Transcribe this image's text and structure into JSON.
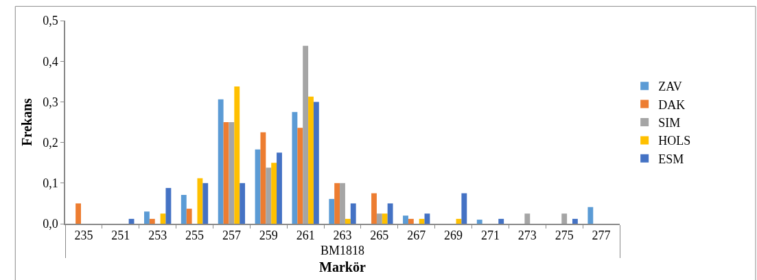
{
  "chart_data": {
    "type": "bar",
    "categories": [
      "235",
      "251",
      "253",
      "255",
      "257",
      "259",
      "261",
      "263",
      "265",
      "267",
      "269",
      "271",
      "273",
      "275",
      "277"
    ],
    "series": [
      {
        "name": "ZAV",
        "color": "#5b9bd5",
        "values": [
          0,
          0,
          0.03,
          0.071,
          0.306,
          0.183,
          0.275,
          0.061,
          0,
          0.02,
          0,
          0.01,
          0,
          0,
          0.041
        ]
      },
      {
        "name": "DAK",
        "color": "#ed7d31",
        "values": [
          0.05,
          0,
          0.012,
          0.037,
          0.25,
          0.225,
          0.236,
          0.1,
          0.075,
          0.012,
          0,
          0,
          0,
          0,
          0
        ]
      },
      {
        "name": "SIM",
        "color": "#a5a5a5",
        "values": [
          0,
          0,
          0,
          0,
          0.25,
          0.138,
          0.438,
          0.1,
          0.025,
          0,
          0,
          0,
          0.025,
          0.025,
          0
        ]
      },
      {
        "name": "HOLS",
        "color": "#ffc000",
        "values": [
          0,
          0,
          0.025,
          0.112,
          0.338,
          0.15,
          0.313,
          0.012,
          0.025,
          0.012,
          0.012,
          0,
          0,
          0,
          0
        ]
      },
      {
        "name": "ESM",
        "color": "#4472c4",
        "values": [
          0,
          0.012,
          0.088,
          0.1,
          0.1,
          0.175,
          0.3,
          0.05,
          0.05,
          0.025,
          0.075,
          0.012,
          0,
          0.012,
          0
        ]
      }
    ],
    "xlabel": "Markör",
    "ylabel": "Frekans",
    "annotations": [
      "BM1818"
    ],
    "ylim": [
      0,
      0.5
    ],
    "yticks": [
      {
        "value": 0,
        "label": "0,0"
      },
      {
        "value": 0.1,
        "label": "0,1"
      },
      {
        "value": 0.2,
        "label": "0,2"
      },
      {
        "value": 0.3,
        "label": "0,3"
      },
      {
        "value": 0.4,
        "label": "0,4"
      },
      {
        "value": 0.5,
        "label": "0,5"
      }
    ],
    "legend": "right"
  }
}
